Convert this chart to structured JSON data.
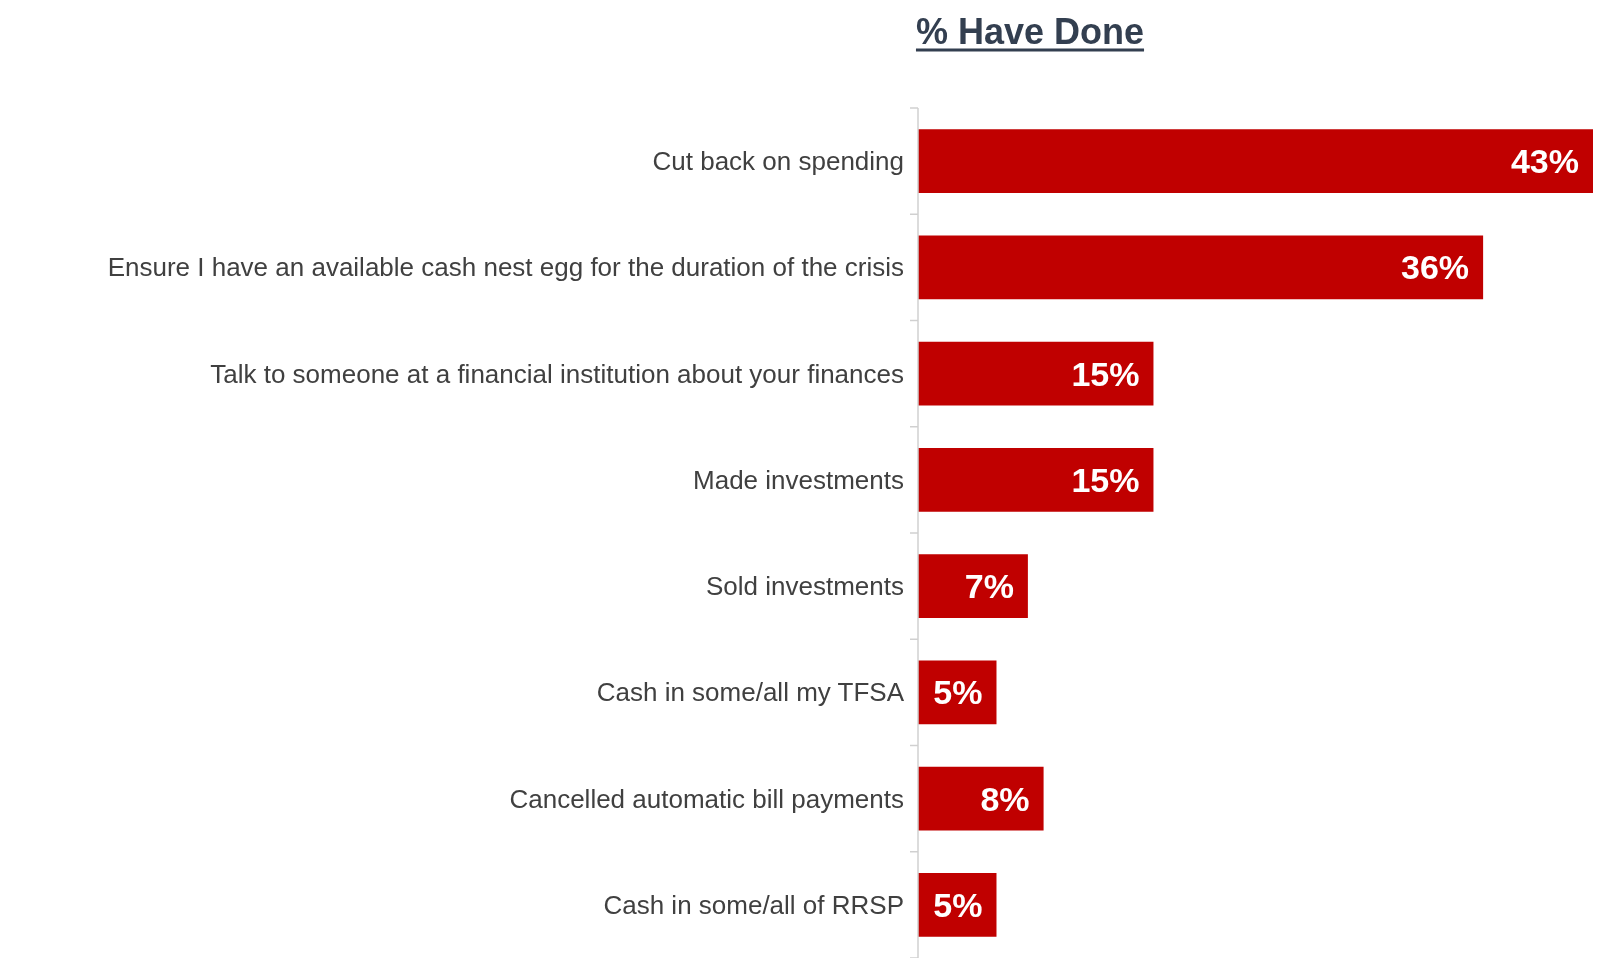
{
  "chart_data": {
    "type": "bar",
    "title": "% Have Done",
    "orientation": "horizontal",
    "categories": [
      "Cut back on spending",
      "Ensure I have an available cash nest egg for the duration of the crisis",
      "Talk to someone at a financial institution about your finances",
      "Made investments",
      "Sold investments",
      "Cash in some/all my TFSA",
      "Cancelled automatic bill payments",
      "Cash in some/all of RRSP"
    ],
    "values": [
      43,
      36,
      15,
      15,
      7,
      5,
      8,
      5
    ],
    "value_labels": [
      "43%",
      "36%",
      "15%",
      "15%",
      "7%",
      "5%",
      "8%",
      "5%"
    ],
    "color": "#c00000"
  }
}
